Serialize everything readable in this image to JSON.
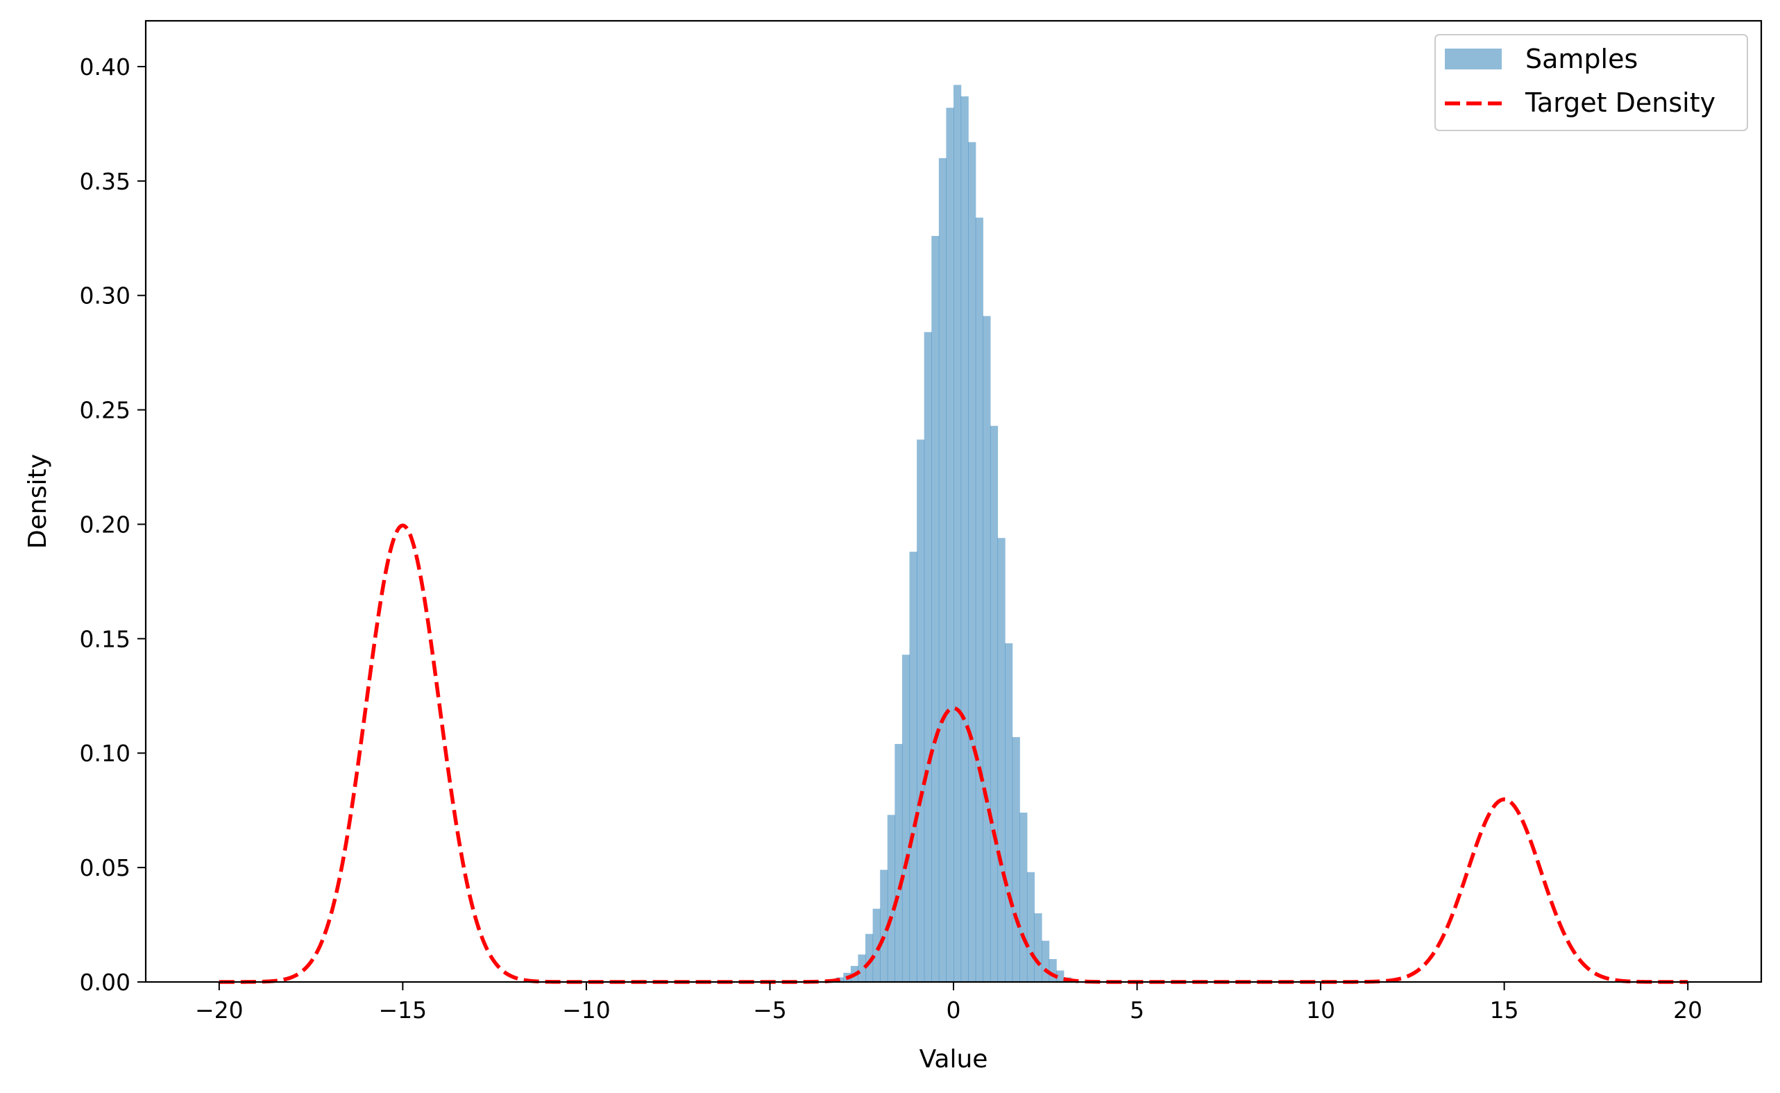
{
  "chart_data": {
    "type": "bar",
    "title": "",
    "xlabel": "Value",
    "ylabel": "Density",
    "xlim": [
      -22,
      22
    ],
    "ylim": [
      0,
      0.42
    ],
    "xticks": [
      -20,
      -15,
      -10,
      -5,
      0,
      5,
      10,
      15,
      20
    ],
    "xtick_labels": [
      "−20",
      "−15",
      "−10",
      "−5",
      "0",
      "5",
      "10",
      "15",
      "20"
    ],
    "yticks": [
      0.0,
      0.05,
      0.1,
      0.15,
      0.2,
      0.25,
      0.3,
      0.35,
      0.4
    ],
    "ytick_labels": [
      "0.00",
      "0.05",
      "0.10",
      "0.15",
      "0.20",
      "0.25",
      "0.30",
      "0.35",
      "0.40"
    ],
    "grid": false,
    "legend": {
      "position": "top-right",
      "entries": [
        {
          "label": "Samples",
          "kind": "patch",
          "color": "#1f77b4",
          "alpha": 0.5
        },
        {
          "label": "Target Density",
          "kind": "dashed-line",
          "color": "#ff0000"
        }
      ]
    },
    "series": [
      {
        "name": "Samples",
        "kind": "histogram",
        "color": "#1f77b4",
        "alpha": 0.5,
        "bin_edges": [
          -3.4,
          -3.2,
          -3.0,
          -2.8,
          -2.6,
          -2.4,
          -2.2,
          -2.0,
          -1.8,
          -1.6,
          -1.4,
          -1.2,
          -1.0,
          -0.8,
          -0.6,
          -0.4,
          -0.2,
          0.0,
          0.2,
          0.4,
          0.6,
          0.8,
          1.0,
          1.2,
          1.4,
          1.6,
          1.8,
          2.0,
          2.2,
          2.4,
          2.6,
          2.8,
          3.0,
          3.2,
          3.4
        ],
        "values": [
          0.001,
          0.002,
          0.004,
          0.007,
          0.012,
          0.021,
          0.032,
          0.049,
          0.073,
          0.104,
          0.143,
          0.188,
          0.237,
          0.284,
          0.326,
          0.36,
          0.382,
          0.392,
          0.387,
          0.367,
          0.334,
          0.291,
          0.243,
          0.194,
          0.148,
          0.107,
          0.074,
          0.048,
          0.03,
          0.018,
          0.01,
          0.005,
          0.002,
          0.001
        ]
      },
      {
        "name": "Target Density",
        "kind": "line",
        "color": "#ff0000",
        "dash": "dashed",
        "x_range": [
          -20,
          20
        ],
        "components": [
          {
            "mean": -15,
            "sd": 1,
            "weight": 0.5
          },
          {
            "mean": 0,
            "sd": 1,
            "weight": 0.3
          },
          {
            "mean": 15,
            "sd": 1,
            "weight": 0.2
          }
        ]
      }
    ]
  }
}
